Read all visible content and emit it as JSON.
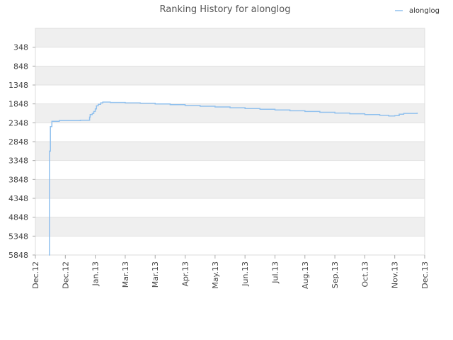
{
  "chart_data": {
    "type": "line",
    "title": "Ranking History for alonglog",
    "xlabel": "",
    "ylabel": "",
    "y_inverted": true,
    "ylim": [
      5848,
      -152
    ],
    "grid": true,
    "legend_position": "top-right",
    "y_ticks": [
      348,
      848,
      1348,
      1848,
      2348,
      2848,
      3348,
      3848,
      4348,
      4848,
      5348,
      5848
    ],
    "y_tick_labels": [
      "348",
      "848",
      "1348",
      "1848",
      "2348",
      "2848",
      "3348",
      "3848",
      "4348",
      "4848",
      "5348",
      "5848"
    ],
    "x_ticks": [
      "Dec.12",
      "Dec.12",
      "Jan.13",
      "Mar.13",
      "Mar.13",
      "Apr.13",
      "May.13",
      "Jun.13",
      "Jul.13",
      "Aug.13",
      "Sep.13",
      "Oct.13",
      "Nov.13",
      "Dec.13"
    ],
    "x_tick_positions": [
      0,
      10,
      20,
      30,
      40,
      50,
      60,
      70,
      80,
      90,
      100,
      110,
      120,
      130
    ],
    "series": [
      {
        "name": "alonglog",
        "color": "#90c0ee",
        "x": [
          4.5,
          4.7,
          5.0,
          5.5,
          8,
          15,
          18,
          18.1,
          18.3,
          19,
          19.5,
          20,
          20.4,
          21,
          21.8,
          22.5,
          25,
          30,
          35,
          40,
          45,
          50,
          55,
          60,
          65,
          70,
          75,
          80,
          85,
          90,
          95,
          100,
          105,
          110,
          115,
          118,
          120,
          121.5,
          123,
          126,
          127.5
        ],
        "values": [
          5848,
          3100,
          2450,
          2310,
          2290,
          2280,
          2280,
          2200,
          2130,
          2100,
          2050,
          1980,
          1900,
          1860,
          1820,
          1800,
          1810,
          1820,
          1830,
          1850,
          1870,
          1890,
          1910,
          1930,
          1950,
          1970,
          1990,
          2010,
          2030,
          2050,
          2070,
          2090,
          2110,
          2130,
          2150,
          2170,
          2160,
          2120,
          2100,
          2100,
          2080
        ]
      }
    ]
  }
}
